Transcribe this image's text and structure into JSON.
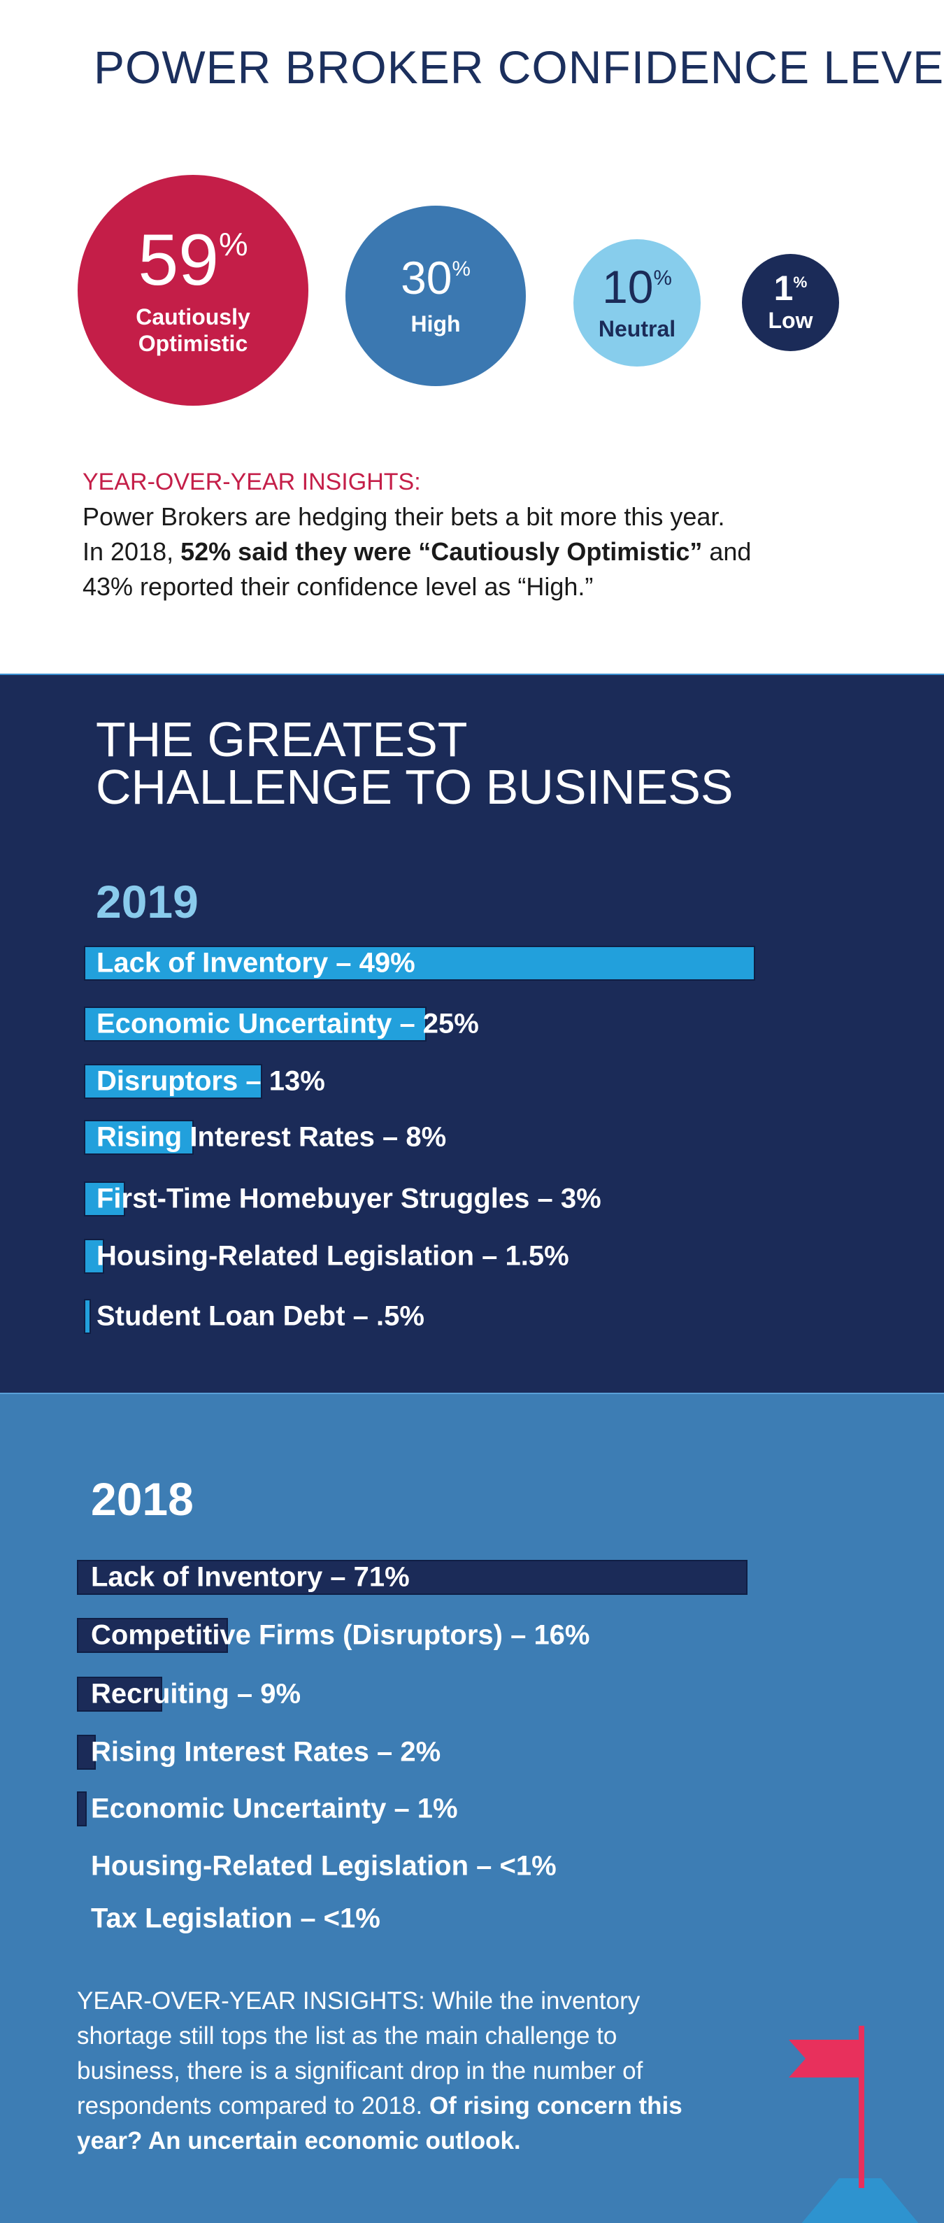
{
  "title": "POWER BROKER CONFIDENCE LEVEL",
  "confidence": [
    {
      "value": "59",
      "unit": "%",
      "label": "Cautiously Optimistic",
      "color": "#c41e48"
    },
    {
      "value": "30",
      "unit": "%",
      "label": "High",
      "color": "#3b78b1"
    },
    {
      "value": "10",
      "unit": "%",
      "label": "Neutral",
      "color": "#87cdec"
    },
    {
      "value": "1",
      "unit": "%",
      "label": "Low",
      "color": "#1b2b58"
    }
  ],
  "insights_1": {
    "heading": "YEAR-OVER-YEAR INSIGHTS:",
    "line1": "Power Brokers are hedging their bets a bit more this year.",
    "line2_pre": "In 2018, ",
    "line2_bold": "52% said they were “Cautiously Optimistic”",
    "line2_post": " and",
    "line3": "43% reported their confidence level as “High.”"
  },
  "challenge_title_1": "THE GREATEST",
  "challenge_title_2": "CHALLENGE TO BUSINESS",
  "chart_data": [
    {
      "type": "bar",
      "title": "2019",
      "categories": [
        "Lack of Inventory",
        "Economic Uncertainty",
        "Disruptors",
        "Rising Interest Rates",
        "First-Time Homebuyer Struggles",
        "Housing-Related Legislation",
        "Student Loan Debt"
      ],
      "values": [
        49,
        25,
        13,
        8,
        3,
        1.5,
        0.5
      ],
      "labels": [
        "Lack of Inventory – 49%",
        "Economic Uncertainty – 25%",
        "Disruptors – 13%",
        "Rising Interest Rates – 8%",
        "First-Time Homebuyer Struggles – 3%",
        "Housing-Related Legislation – 1.5%",
        "Student Loan Debt – .5%"
      ],
      "bar_color": "#22a0dc"
    },
    {
      "type": "bar",
      "title": "2018",
      "categories": [
        "Lack of Inventory",
        "Competitive Firms (Disruptors)",
        "Recruiting",
        "Rising Interest Rates",
        "Economic Uncertainty",
        "Housing-Related Legislation",
        "Tax Legislation"
      ],
      "values": [
        71,
        16,
        9,
        2,
        1,
        0,
        0
      ],
      "labels": [
        "Lack of Inventory – 71%",
        "Competitive Firms (Disruptors) – 16%",
        "Recruiting – 9%",
        "Rising Interest Rates – 2%",
        "Economic Uncertainty – 1%",
        "Housing-Related Legislation – <1%",
        "Tax Legislation – <1%"
      ],
      "bar_color": "#1b2b58"
    }
  ],
  "insights_2": {
    "text": "YEAR-OVER-YEAR INSIGHTS: While the inventory shortage still tops the list as the main challenge to business, there is a significant drop in the number of respondents compared to 2018. ",
    "bold": "Of rising concern this year? An uncertain economic outlook."
  },
  "colors": {
    "navy": "#1b2b58",
    "red": "#c41e48",
    "mid_blue": "#3d7db4",
    "light_blue": "#87cdec",
    "flag": "#e8305c"
  }
}
